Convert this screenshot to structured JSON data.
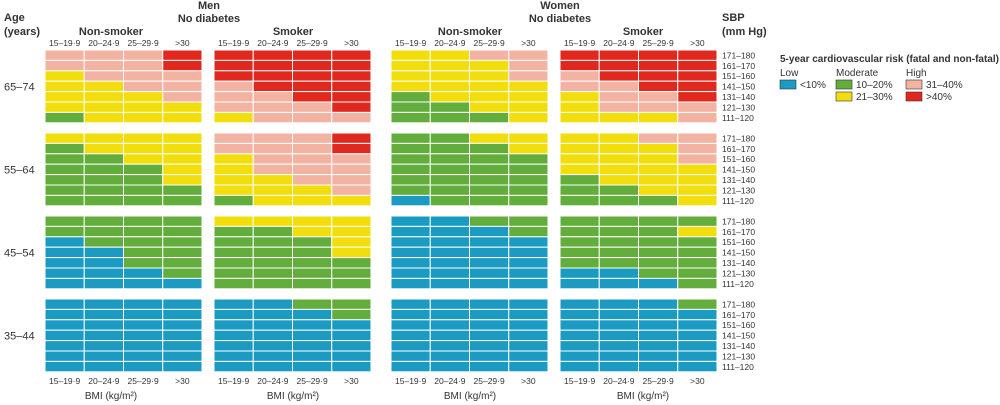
{
  "chart_data": {
    "type": "heatmap",
    "row_headers": [
      "Age",
      "(years)"
    ],
    "sbp_headers": [
      "SBP",
      "(mm Hg)"
    ],
    "sex_headers": [
      {
        "sex": "Men",
        "sub": "No diabetes"
      },
      {
        "sex": "Women",
        "sub": "No diabetes"
      }
    ],
    "smoking_labels": [
      "Non-smoker",
      "Smoker",
      "Non-smoker",
      "Smoker"
    ],
    "bmi_categories": [
      "15–19·9",
      "20–24·9",
      "25–29·9",
      ">30"
    ],
    "sbp_categories": [
      "171–180",
      "161–170",
      "151–160",
      "141–150",
      "131–140",
      "121–130",
      "111–120"
    ],
    "age_groups": [
      "65–74",
      "55–64",
      "45–54",
      "35–44"
    ],
    "xlabel": "BMI (kg/m²)",
    "legend": {
      "title": "5-year cardiovascular risk (fatal and non-fatal)",
      "groups": [
        {
          "name": "Low",
          "items": [
            {
              "code": 1,
              "label": "<10%",
              "color": "#1b9bc2"
            }
          ]
        },
        {
          "name": "Moderate",
          "items": [
            {
              "code": 2,
              "label": "10–20%",
              "color": "#62ad3c"
            },
            {
              "code": 3,
              "label": "21–30%",
              "color": "#f2de0d"
            }
          ]
        },
        {
          "name": "High",
          "items": [
            {
              "code": 4,
              "label": "31–40%",
              "color": "#f3b3a3"
            },
            {
              "code": 5,
              "label": ">40%",
              "color": "#e0281f"
            }
          ]
        }
      ]
    },
    "risk_codes": {
      "1": "<10%",
      "2": "10–20%",
      "3": "21–30%",
      "4": "31–40%",
      "5": ">40%"
    },
    "panels": [
      {
        "sex": "Men",
        "smoking": "Non-smoker",
        "age_grids": [
          [
            [
              4,
              4,
              4,
              5
            ],
            [
              4,
              4,
              4,
              5
            ],
            [
              3,
              4,
              4,
              4
            ],
            [
              3,
              3,
              4,
              4
            ],
            [
              3,
              3,
              3,
              4
            ],
            [
              3,
              3,
              3,
              3
            ],
            [
              2,
              3,
              3,
              3
            ]
          ],
          [
            [
              3,
              3,
              3,
              3
            ],
            [
              2,
              3,
              3,
              3
            ],
            [
              2,
              2,
              3,
              3
            ],
            [
              2,
              2,
              2,
              3
            ],
            [
              2,
              2,
              2,
              3
            ],
            [
              2,
              2,
              2,
              2
            ],
            [
              2,
              2,
              2,
              2
            ]
          ],
          [
            [
              2,
              2,
              2,
              2
            ],
            [
              2,
              2,
              2,
              2
            ],
            [
              1,
              2,
              2,
              2
            ],
            [
              1,
              1,
              2,
              2
            ],
            [
              1,
              1,
              2,
              2
            ],
            [
              1,
              1,
              1,
              2
            ],
            [
              1,
              1,
              1,
              1
            ]
          ],
          [
            [
              1,
              1,
              1,
              1
            ],
            [
              1,
              1,
              1,
              1
            ],
            [
              1,
              1,
              1,
              1
            ],
            [
              1,
              1,
              1,
              1
            ],
            [
              1,
              1,
              1,
              1
            ],
            [
              1,
              1,
              1,
              1
            ],
            [
              1,
              1,
              1,
              1
            ]
          ]
        ]
      },
      {
        "sex": "Men",
        "smoking": "Smoker",
        "age_grids": [
          [
            [
              5,
              5,
              5,
              5
            ],
            [
              5,
              5,
              5,
              5
            ],
            [
              5,
              5,
              5,
              5
            ],
            [
              4,
              5,
              5,
              5
            ],
            [
              4,
              4,
              5,
              5
            ],
            [
              4,
              4,
              4,
              5
            ],
            [
              3,
              4,
              4,
              4
            ]
          ],
          [
            [
              4,
              4,
              4,
              5
            ],
            [
              4,
              4,
              4,
              5
            ],
            [
              3,
              4,
              4,
              4
            ],
            [
              3,
              4,
              4,
              4
            ],
            [
              3,
              3,
              4,
              4
            ],
            [
              3,
              3,
              3,
              4
            ],
            [
              2,
              3,
              3,
              3
            ]
          ],
          [
            [
              3,
              3,
              3,
              3
            ],
            [
              2,
              2,
              3,
              3
            ],
            [
              2,
              2,
              2,
              3
            ],
            [
              2,
              2,
              2,
              3
            ],
            [
              2,
              2,
              2,
              2
            ],
            [
              2,
              2,
              2,
              2
            ],
            [
              2,
              2,
              2,
              2
            ]
          ],
          [
            [
              1,
              1,
              2,
              2
            ],
            [
              1,
              1,
              1,
              2
            ],
            [
              1,
              1,
              1,
              1
            ],
            [
              1,
              1,
              1,
              1
            ],
            [
              1,
              1,
              1,
              1
            ],
            [
              1,
              1,
              1,
              1
            ],
            [
              1,
              1,
              1,
              1
            ]
          ]
        ]
      },
      {
        "sex": "Women",
        "smoking": "Non-smoker",
        "age_grids": [
          [
            [
              3,
              3,
              4,
              4
            ],
            [
              3,
              3,
              3,
              4
            ],
            [
              3,
              3,
              3,
              4
            ],
            [
              3,
              3,
              3,
              3
            ],
            [
              2,
              3,
              3,
              3
            ],
            [
              2,
              2,
              3,
              3
            ],
            [
              2,
              2,
              2,
              3
            ]
          ],
          [
            [
              2,
              2,
              3,
              3
            ],
            [
              2,
              2,
              2,
              3
            ],
            [
              2,
              2,
              2,
              2
            ],
            [
              2,
              2,
              2,
              2
            ],
            [
              2,
              2,
              2,
              2
            ],
            [
              2,
              2,
              2,
              2
            ],
            [
              1,
              2,
              2,
              2
            ]
          ],
          [
            [
              1,
              1,
              2,
              2
            ],
            [
              1,
              1,
              1,
              2
            ],
            [
              1,
              1,
              1,
              1
            ],
            [
              1,
              1,
              1,
              1
            ],
            [
              1,
              1,
              1,
              1
            ],
            [
              1,
              1,
              1,
              1
            ],
            [
              1,
              1,
              1,
              1
            ]
          ],
          [
            [
              1,
              1,
              1,
              1
            ],
            [
              1,
              1,
              1,
              1
            ],
            [
              1,
              1,
              1,
              1
            ],
            [
              1,
              1,
              1,
              1
            ],
            [
              1,
              1,
              1,
              1
            ],
            [
              1,
              1,
              1,
              1
            ],
            [
              1,
              1,
              1,
              1
            ]
          ]
        ]
      },
      {
        "sex": "Women",
        "smoking": "Smoker",
        "age_grids": [
          [
            [
              5,
              5,
              5,
              5
            ],
            [
              5,
              5,
              5,
              5
            ],
            [
              4,
              5,
              5,
              5
            ],
            [
              4,
              4,
              5,
              5
            ],
            [
              3,
              4,
              4,
              5
            ],
            [
              3,
              4,
              4,
              4
            ],
            [
              3,
              3,
              3,
              4
            ]
          ],
          [
            [
              3,
              3,
              4,
              4
            ],
            [
              3,
              3,
              3,
              4
            ],
            [
              3,
              3,
              3,
              4
            ],
            [
              3,
              3,
              3,
              3
            ],
            [
              2,
              3,
              3,
              3
            ],
            [
              2,
              2,
              3,
              3
            ],
            [
              2,
              2,
              2,
              3
            ]
          ],
          [
            [
              2,
              2,
              2,
              2
            ],
            [
              2,
              2,
              2,
              3
            ],
            [
              2,
              2,
              2,
              2
            ],
            [
              2,
              2,
              2,
              2
            ],
            [
              2,
              2,
              2,
              2
            ],
            [
              1,
              1,
              2,
              2
            ],
            [
              1,
              1,
              1,
              2
            ]
          ],
          [
            [
              1,
              1,
              1,
              2
            ],
            [
              1,
              1,
              1,
              1
            ],
            [
              1,
              1,
              1,
              1
            ],
            [
              1,
              1,
              1,
              1
            ],
            [
              1,
              1,
              1,
              1
            ],
            [
              1,
              1,
              1,
              1
            ],
            [
              1,
              1,
              1,
              1
            ]
          ]
        ]
      }
    ]
  }
}
